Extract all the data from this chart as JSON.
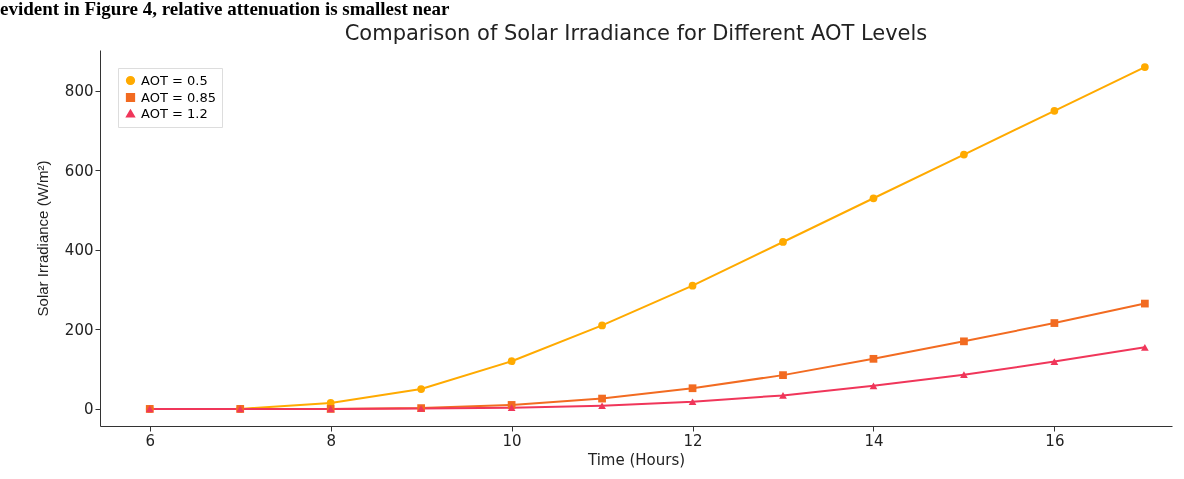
{
  "chart_data": {
    "type": "line",
    "title": "Comparison of Solar Irradiance for Different AOT Levels",
    "xlabel": "Time (Hours)",
    "ylabel": "Solar Irradiance (W/m²)",
    "annotations": [
      "evident in Figure 4, relative attenuation is smallest near"
    ],
    "x": [
      6,
      7,
      8,
      9,
      10,
      11,
      12,
      13,
      14,
      15,
      16,
      17
    ],
    "series": [
      {
        "name": "AOT = 0.5",
        "color": "#ffaa00",
        "marker": "circle",
        "values": [
          0,
          0,
          15,
          50,
          120,
          210,
          310,
          420,
          530,
          640,
          750,
          860
        ]
      },
      {
        "name": "AOT = 0.85",
        "color": "#f26b21",
        "marker": "square",
        "values": [
          0,
          0,
          0,
          2,
          10,
          26,
          52,
          85,
          126,
          170,
          216,
          265
        ]
      },
      {
        "name": "AOT = 1.2",
        "color": "#f0365a",
        "marker": "triangle",
        "values": [
          0,
          0,
          0,
          1,
          3,
          8,
          18,
          34,
          58,
          86,
          119,
          155
        ]
      }
    ],
    "xlim": [
      5.45,
      17.3
    ],
    "ylim": [
      -43,
      903
    ],
    "xticks": [
      6,
      8,
      10,
      12,
      14,
      16
    ],
    "yticks": [
      0,
      200,
      400,
      600,
      800
    ],
    "grid": false,
    "legend": "top left",
    "line_style": "solid"
  }
}
